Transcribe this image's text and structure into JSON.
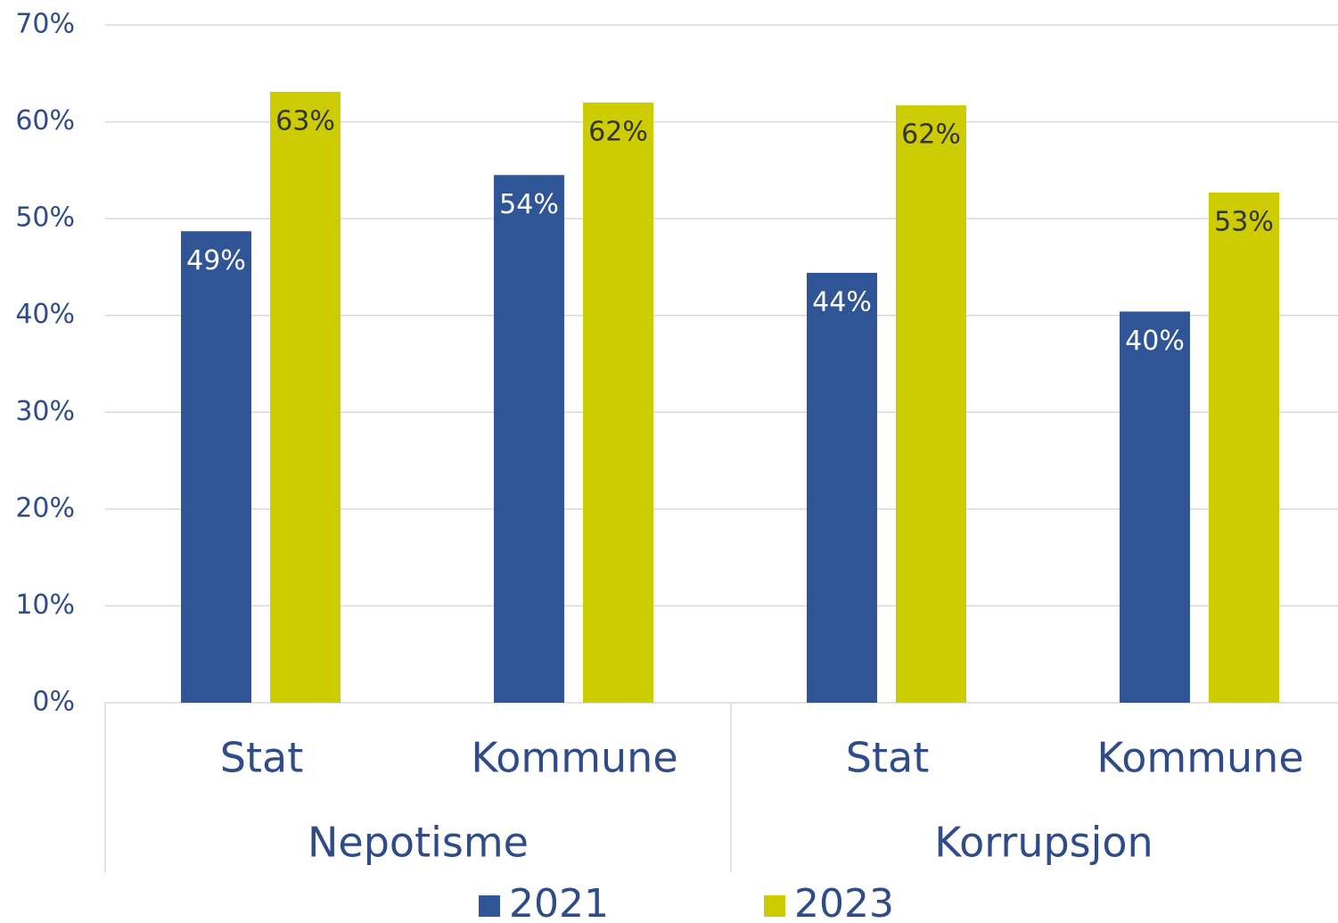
{
  "chart_data": {
    "type": "bar",
    "categories": [
      "Stat",
      "Kommune",
      "Stat",
      "Kommune"
    ],
    "groups": [
      "Nepotisme",
      "Korrupsjon"
    ],
    "series": [
      {
        "name": "2021",
        "color": "#2f5597",
        "values": [
          48.7,
          54.5,
          44.4,
          40.4
        ],
        "value_labels": [
          "49%",
          "54%",
          "44%",
          "40%"
        ]
      },
      {
        "name": "2023",
        "color": "#cccc00",
        "values": [
          63.1,
          62.0,
          61.7,
          52.7
        ],
        "value_labels": [
          "63%",
          "62%",
          "62%",
          "53%"
        ]
      }
    ],
    "ylim": [
      0,
      70
    ],
    "yticks": [
      {
        "value": 0,
        "label": "0%"
      },
      {
        "value": 10,
        "label": "10%"
      },
      {
        "value": 20,
        "label": "20%"
      },
      {
        "value": 30,
        "label": "30%"
      },
      {
        "value": 40,
        "label": "40%"
      },
      {
        "value": 50,
        "label": "50%"
      },
      {
        "value": 60,
        "label": "60%"
      },
      {
        "value": 70,
        "label": "70%"
      }
    ],
    "grid": true
  }
}
